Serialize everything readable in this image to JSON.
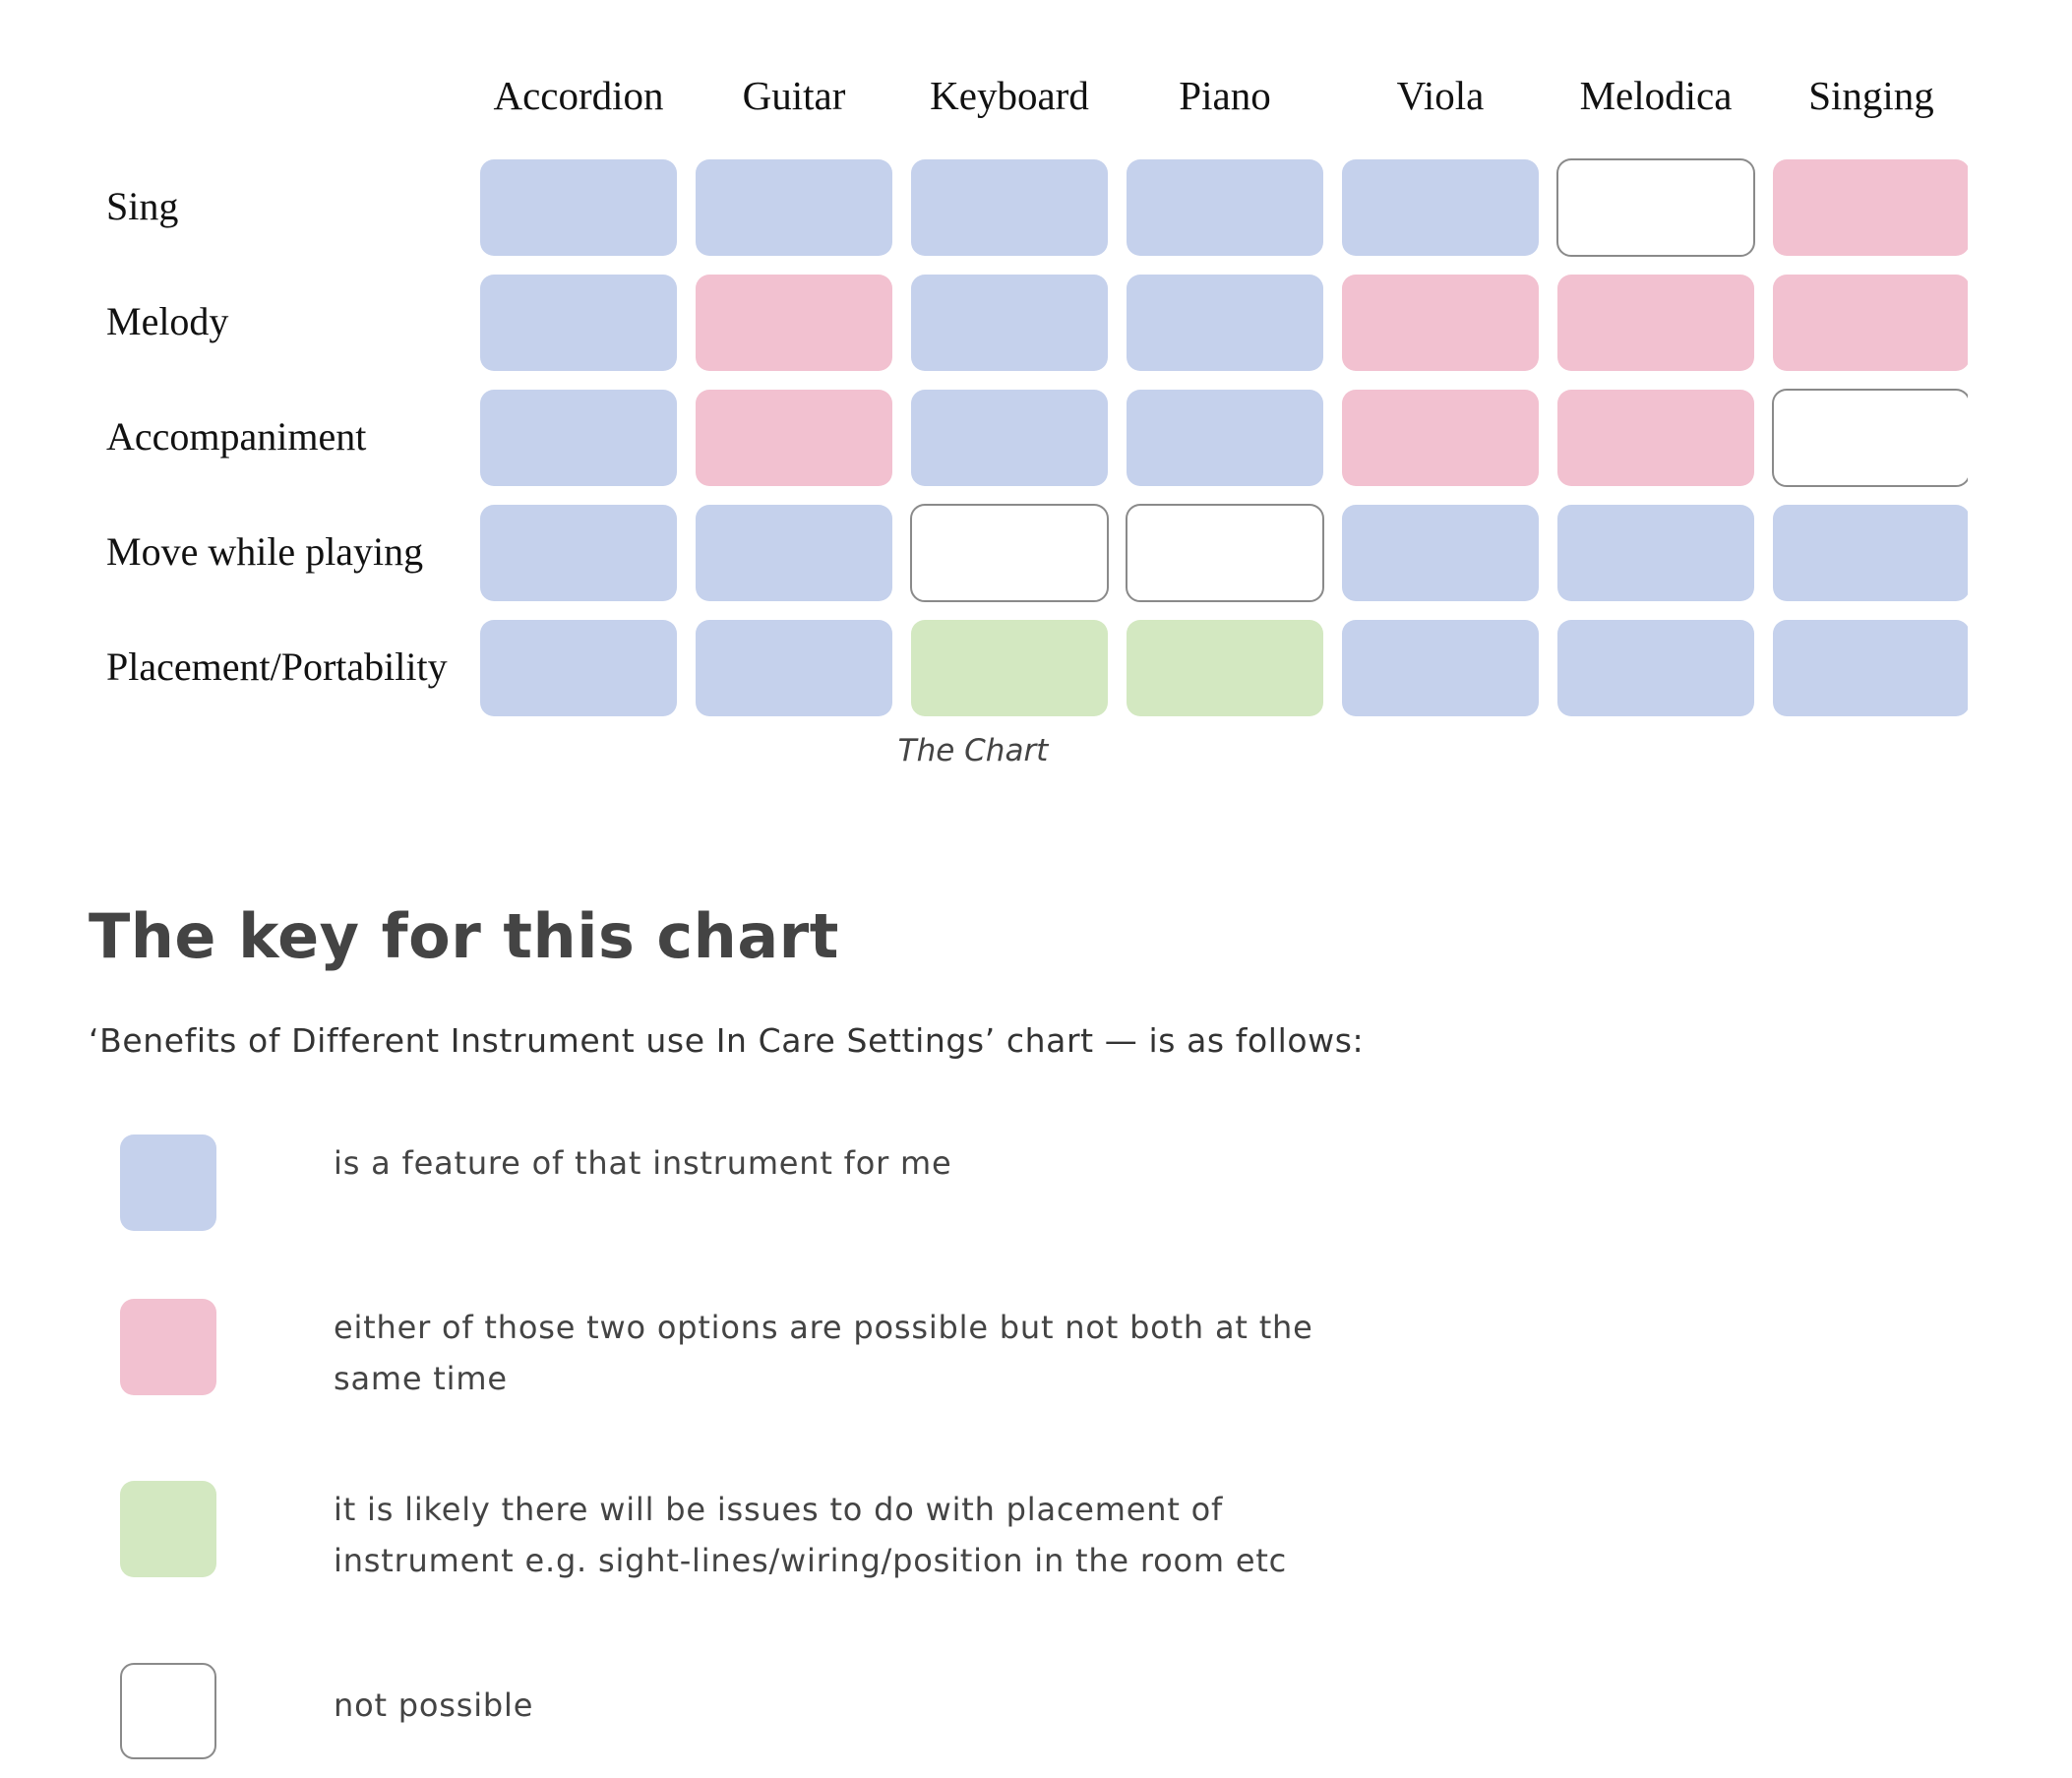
{
  "chart_data": {
    "type": "table",
    "title": "",
    "columns": [
      "Accordion",
      "Guitar",
      "Keyboard",
      "Piano",
      "Viola",
      "Melodica",
      "Singing"
    ],
    "rows": [
      "Sing",
      "Melody",
      "Accompaniment",
      "Move while playing",
      "Placement/Portability"
    ],
    "cells": [
      [
        "feature",
        "feature",
        "feature",
        "feature",
        "feature",
        "not_possible",
        "either"
      ],
      [
        "feature",
        "either",
        "feature",
        "feature",
        "either",
        "either",
        "either"
      ],
      [
        "feature",
        "either",
        "feature",
        "feature",
        "either",
        "either",
        "not_possible"
      ],
      [
        "feature",
        "feature",
        "not_possible",
        "not_possible",
        "feature",
        "feature",
        "feature"
      ],
      [
        "feature",
        "feature",
        "placement_issue",
        "placement_issue",
        "feature",
        "feature",
        "feature"
      ]
    ],
    "caption": "The Chart",
    "legend": [
      {
        "key": "feature",
        "label": "is a feature of that instrument for me"
      },
      {
        "key": "either",
        "label": "either of those two options are possible but not both at the same time"
      },
      {
        "key": "placement_issue",
        "label": "it is likely there will be issues to do with placement of instrument e.g. sight-lines/wiring/position in the room etc"
      },
      {
        "key": "not_possible",
        "label": "not possible"
      }
    ]
  },
  "colors": {
    "feature": "#c5d1ec",
    "either": "#f2c1d0",
    "placement_issue": "#d3e8c1",
    "not_possible": "#ffffff",
    "outline": "#8a8a8a"
  },
  "key_section": {
    "title": "The key for this chart",
    "intro": "‘Benefits of Different Instrument use In Care Settings’ chart — is as follows:"
  }
}
